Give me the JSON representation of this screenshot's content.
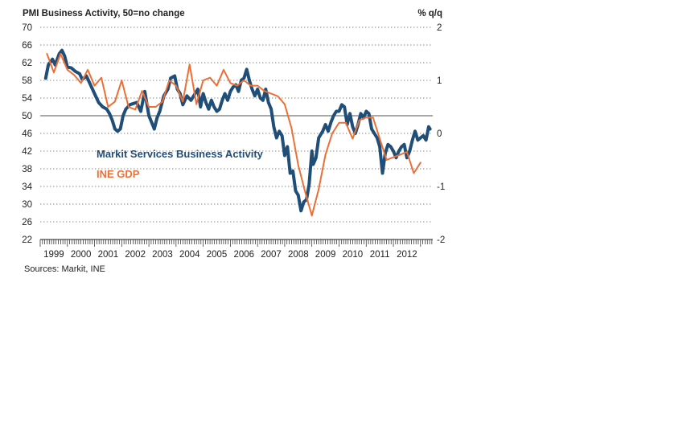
{
  "chart_data": {
    "type": "line",
    "title": "PMI Business Activity, 50=no change",
    "right_axis_title": "% q/q",
    "source": "Sources: Markit, INE",
    "x_categories": [
      "1999",
      "2000",
      "2001",
      "2002",
      "2003",
      "2004",
      "2005",
      "2006",
      "2007",
      "2008",
      "2009",
      "2010",
      "2011",
      "2012"
    ],
    "left_axis": {
      "min": 22,
      "max": 70,
      "ticks": [
        22,
        26,
        30,
        34,
        38,
        42,
        46,
        50,
        54,
        58,
        62,
        66,
        70
      ]
    },
    "right_axis": {
      "min": -2,
      "max": 2,
      "ticks": [
        -2,
        -1,
        0,
        1,
        2
      ]
    },
    "gridlines": true,
    "series": [
      {
        "name": "Markit Services Business Activity",
        "axis": "left",
        "color": "#1f4e79",
        "data": [
          [
            1999.2,
            58.5
          ],
          [
            1999.3,
            61.5
          ],
          [
            1999.45,
            62.8
          ],
          [
            1999.55,
            61.5
          ],
          [
            1999.7,
            64.0
          ],
          [
            1999.8,
            64.8
          ],
          [
            1999.9,
            63.5
          ],
          [
            2000.0,
            61.0
          ],
          [
            2000.15,
            60.8
          ],
          [
            2000.3,
            60.0
          ],
          [
            2000.45,
            59.5
          ],
          [
            2000.55,
            58.2
          ],
          [
            2000.7,
            59.0
          ],
          [
            2000.85,
            57.0
          ],
          [
            2001.0,
            55.0
          ],
          [
            2001.15,
            53.0
          ],
          [
            2001.3,
            52.0
          ],
          [
            2001.45,
            51.5
          ],
          [
            2001.55,
            50.5
          ],
          [
            2001.65,
            49.0
          ],
          [
            2001.75,
            47.0
          ],
          [
            2001.85,
            46.5
          ],
          [
            2001.95,
            47.0
          ],
          [
            2002.05,
            50.0
          ],
          [
            2002.15,
            51.5
          ],
          [
            2002.3,
            52.5
          ],
          [
            2002.45,
            52.8
          ],
          [
            2002.55,
            53.0
          ],
          [
            2002.7,
            51.0
          ],
          [
            2002.85,
            55.5
          ],
          [
            2003.0,
            50.0
          ],
          [
            2003.1,
            48.5
          ],
          [
            2003.2,
            47.0
          ],
          [
            2003.3,
            49.5
          ],
          [
            2003.4,
            51.0
          ],
          [
            2003.55,
            54.5
          ],
          [
            2003.7,
            56.0
          ],
          [
            2003.8,
            58.5
          ],
          [
            2003.95,
            59.0
          ],
          [
            2004.05,
            56.0
          ],
          [
            2004.15,
            55.0
          ],
          [
            2004.25,
            52.5
          ],
          [
            2004.4,
            54.5
          ],
          [
            2004.55,
            53.5
          ],
          [
            2004.7,
            55.0
          ],
          [
            2004.8,
            56.0
          ],
          [
            2004.9,
            52.0
          ],
          [
            2005.0,
            55.0
          ],
          [
            2005.1,
            53.0
          ],
          [
            2005.2,
            51.5
          ],
          [
            2005.3,
            53.5
          ],
          [
            2005.4,
            52.0
          ],
          [
            2005.5,
            51.0
          ],
          [
            2005.6,
            51.5
          ],
          [
            2005.7,
            53.5
          ],
          [
            2005.8,
            55.0
          ],
          [
            2005.9,
            53.5
          ],
          [
            2006.0,
            55.5
          ],
          [
            2006.1,
            56.5
          ],
          [
            2006.2,
            57.0
          ],
          [
            2006.3,
            55.5
          ],
          [
            2006.4,
            58.0
          ],
          [
            2006.5,
            58.5
          ],
          [
            2006.6,
            60.5
          ],
          [
            2006.7,
            58.0
          ],
          [
            2006.8,
            56.0
          ],
          [
            2006.9,
            54.5
          ],
          [
            2007.0,
            56.0
          ],
          [
            2007.1,
            54.0
          ],
          [
            2007.2,
            53.5
          ],
          [
            2007.3,
            56.0
          ],
          [
            2007.4,
            53.0
          ],
          [
            2007.5,
            51.5
          ],
          [
            2007.6,
            47.5
          ],
          [
            2007.7,
            45.0
          ],
          [
            2007.8,
            46.5
          ],
          [
            2007.9,
            45.5
          ],
          [
            2008.0,
            41.0
          ],
          [
            2008.1,
            43.0
          ],
          [
            2008.2,
            37.0
          ],
          [
            2008.3,
            37.5
          ],
          [
            2008.4,
            33.0
          ],
          [
            2008.5,
            32.0
          ],
          [
            2008.6,
            28.5
          ],
          [
            2008.7,
            30.5
          ],
          [
            2008.8,
            31.0
          ],
          [
            2008.9,
            34.5
          ],
          [
            2009.0,
            42.0
          ],
          [
            2009.05,
            39.0
          ],
          [
            2009.15,
            40.5
          ],
          [
            2009.25,
            45.0
          ],
          [
            2009.4,
            46.5
          ],
          [
            2009.5,
            48.0
          ],
          [
            2009.6,
            46.5
          ],
          [
            2009.7,
            48.5
          ],
          [
            2009.8,
            50.0
          ],
          [
            2009.9,
            51.0
          ],
          [
            2010.0,
            51.0
          ],
          [
            2010.1,
            52.5
          ],
          [
            2010.2,
            52.0
          ],
          [
            2010.3,
            48.0
          ],
          [
            2010.4,
            50.5
          ],
          [
            2010.5,
            47.5
          ],
          [
            2010.6,
            46.0
          ],
          [
            2010.7,
            48.0
          ],
          [
            2010.8,
            50.5
          ],
          [
            2010.9,
            49.5
          ],
          [
            2011.0,
            51.0
          ],
          [
            2011.1,
            50.5
          ],
          [
            2011.2,
            47.0
          ],
          [
            2011.3,
            46.0
          ],
          [
            2011.4,
            45.0
          ],
          [
            2011.5,
            43.0
          ],
          [
            2011.6,
            37.0
          ],
          [
            2011.7,
            41.5
          ],
          [
            2011.8,
            43.5
          ],
          [
            2011.9,
            43.0
          ],
          [
            2012.0,
            42.0
          ],
          [
            2012.1,
            40.5
          ],
          [
            2012.2,
            42.0
          ],
          [
            2012.3,
            43.0
          ],
          [
            2012.4,
            43.5
          ],
          [
            2012.5,
            40.5
          ],
          [
            2012.6,
            42.0
          ],
          [
            2012.7,
            44.5
          ],
          [
            2012.8,
            46.5
          ],
          [
            2012.9,
            44.5
          ],
          [
            2013.0,
            45.0
          ],
          [
            2013.1,
            45.5
          ],
          [
            2013.2,
            44.5
          ],
          [
            2013.3,
            47.5
          ],
          [
            2013.35,
            47.0
          ]
        ]
      },
      {
        "name": "INE GDP",
        "axis": "right",
        "color": "#ec7035",
        "data": [
          [
            1999.25,
            1.5
          ],
          [
            1999.5,
            1.15
          ],
          [
            1999.75,
            1.5
          ],
          [
            2000.0,
            1.2
          ],
          [
            2000.25,
            1.1
          ],
          [
            2000.5,
            0.95
          ],
          [
            2000.75,
            1.2
          ],
          [
            2001.0,
            0.9
          ],
          [
            2001.25,
            1.05
          ],
          [
            2001.5,
            0.5
          ],
          [
            2001.75,
            0.6
          ],
          [
            2002.0,
            1.0
          ],
          [
            2002.25,
            0.5
          ],
          [
            2002.5,
            0.45
          ],
          [
            2002.75,
            0.8
          ],
          [
            2003.0,
            0.5
          ],
          [
            2003.25,
            0.5
          ],
          [
            2003.5,
            0.6
          ],
          [
            2003.75,
            1.0
          ],
          [
            2004.0,
            0.9
          ],
          [
            2004.25,
            0.6
          ],
          [
            2004.5,
            1.3
          ],
          [
            2004.75,
            0.55
          ],
          [
            2005.0,
            1.0
          ],
          [
            2005.25,
            1.05
          ],
          [
            2005.5,
            0.9
          ],
          [
            2005.75,
            1.2
          ],
          [
            2006.0,
            0.95
          ],
          [
            2006.25,
            0.9
          ],
          [
            2006.5,
            1.0
          ],
          [
            2006.75,
            0.9
          ],
          [
            2007.0,
            0.9
          ],
          [
            2007.25,
            0.8
          ],
          [
            2007.5,
            0.75
          ],
          [
            2007.75,
            0.7
          ],
          [
            2008.0,
            0.55
          ],
          [
            2008.25,
            0.1
          ],
          [
            2008.5,
            -0.6
          ],
          [
            2008.75,
            -1.1
          ],
          [
            2009.0,
            -1.55
          ],
          [
            2009.25,
            -1.05
          ],
          [
            2009.5,
            -0.4
          ],
          [
            2009.75,
            0.0
          ],
          [
            2010.0,
            0.2
          ],
          [
            2010.25,
            0.2
          ],
          [
            2010.5,
            -0.1
          ],
          [
            2010.75,
            0.25
          ],
          [
            2011.0,
            0.3
          ],
          [
            2011.25,
            0.3
          ],
          [
            2011.5,
            -0.1
          ],
          [
            2011.75,
            -0.5
          ],
          [
            2012.0,
            -0.45
          ],
          [
            2012.25,
            -0.4
          ],
          [
            2012.5,
            -0.35
          ],
          [
            2012.75,
            -0.75
          ],
          [
            2013.0,
            -0.55
          ]
        ]
      }
    ]
  }
}
